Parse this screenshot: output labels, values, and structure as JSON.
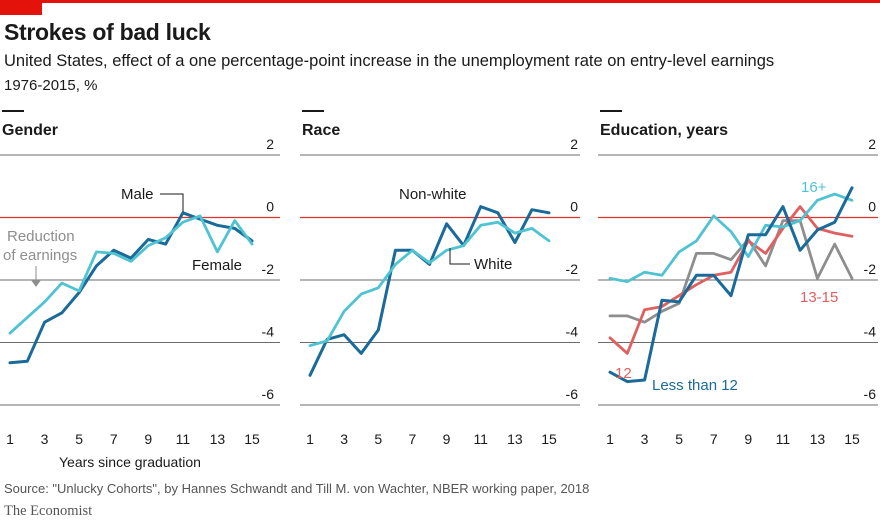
{
  "header": {
    "title": "Strokes of bad luck",
    "subtitle": "United States, effect of a one percentage-point increase in the unemployment rate on entry-level earnings",
    "subtitle2": "1976-2015, %"
  },
  "footer": {
    "source": "Source: \"Unlucky Cohorts\", by Hannes Schwandt and Till M. von Wachter, NBER working paper, 2018",
    "brand": "The Economist"
  },
  "colors": {
    "dark_blue": "#1a6a9a",
    "light_blue": "#4fc3d1",
    "grey": "#8e8e8e",
    "red": "#e06060",
    "zero_line": "#d9342b",
    "grid": "#3a3a3a"
  },
  "chart_data": [
    {
      "type": "line",
      "title": "Gender",
      "xlabel": "Years since graduation",
      "ylabel": "",
      "x": [
        1,
        2,
        3,
        4,
        5,
        6,
        7,
        8,
        9,
        10,
        11,
        12,
        13,
        14,
        15
      ],
      "xticks": [
        "1",
        "3",
        "5",
        "7",
        "9",
        "11",
        "13",
        "15"
      ],
      "yticks": [
        "2",
        "0",
        "-2",
        "-4",
        "-6"
      ],
      "ylim": [
        -6,
        2
      ],
      "series": [
        {
          "name": "Male",
          "color": "#1a6a9a",
          "values": [
            -4.65,
            -4.6,
            -3.35,
            -3.05,
            -2.4,
            -1.55,
            -1.05,
            -1.3,
            -0.7,
            -0.85,
            0.15,
            -0.05,
            -0.25,
            -0.35,
            -0.75
          ]
        },
        {
          "name": "Female",
          "color": "#4fc3d1",
          "values": [
            -3.7,
            -3.2,
            -2.7,
            -2.1,
            -2.35,
            -1.1,
            -1.15,
            -1.4,
            -0.9,
            -0.65,
            -0.15,
            0.05,
            -1.1,
            -0.1,
            -0.85
          ]
        }
      ],
      "annotations": [
        "Reduction of earnings"
      ]
    },
    {
      "type": "line",
      "title": "Race",
      "xlabel": "",
      "ylabel": "",
      "x": [
        1,
        2,
        3,
        4,
        5,
        6,
        7,
        8,
        9,
        10,
        11,
        12,
        13,
        14,
        15
      ],
      "xticks": [
        "1",
        "3",
        "5",
        "7",
        "9",
        "11",
        "13",
        "15"
      ],
      "yticks": [
        "2",
        "0",
        "-2",
        "-4",
        "-6"
      ],
      "ylim": [
        -6,
        2
      ],
      "series": [
        {
          "name": "Non-white",
          "color": "#1a6a9a",
          "values": [
            -5.05,
            -3.9,
            -3.75,
            -4.35,
            -3.6,
            -1.05,
            -1.05,
            -1.5,
            -0.2,
            -0.9,
            0.35,
            0.15,
            -0.8,
            0.25,
            0.15
          ]
        },
        {
          "name": "White",
          "color": "#4fc3d1",
          "values": [
            -4.1,
            -3.95,
            -3.0,
            -2.45,
            -2.25,
            -1.5,
            -1.05,
            -1.45,
            -1.05,
            -0.9,
            -0.25,
            -0.15,
            -0.5,
            -0.35,
            -0.75
          ]
        }
      ]
    },
    {
      "type": "line",
      "title": "Education, years",
      "xlabel": "",
      "ylabel": "",
      "x": [
        1,
        2,
        3,
        4,
        5,
        6,
        7,
        8,
        9,
        10,
        11,
        12,
        13,
        14,
        15
      ],
      "xticks": [
        "1",
        "3",
        "5",
        "7",
        "9",
        "11",
        "13",
        "15"
      ],
      "yticks": [
        "2",
        "0",
        "-2",
        "-4",
        "-6"
      ],
      "ylim": [
        -6,
        2
      ],
      "series": [
        {
          "name": "13-15",
          "color": "#8e8e8e",
          "values": [
            -3.15,
            -3.15,
            -3.35,
            -3.0,
            -2.75,
            -1.15,
            -1.15,
            -1.35,
            -0.7,
            -1.55,
            -0.1,
            -0.1,
            -1.95,
            -0.85,
            -1.95
          ]
        },
        {
          "name": "12",
          "color": "#e06060",
          "values": [
            -3.85,
            -4.35,
            -2.95,
            -2.85,
            -2.5,
            -2.15,
            -1.85,
            -1.75,
            -0.75,
            -1.15,
            -0.35,
            0.35,
            -0.35,
            -0.5,
            -0.6
          ]
        },
        {
          "name": "16+",
          "color": "#4fc3d1",
          "values": [
            -1.95,
            -2.05,
            -1.75,
            -1.85,
            -1.1,
            -0.75,
            0.05,
            -0.45,
            -1.25,
            -0.25,
            -0.3,
            -0.1,
            0.55,
            0.75,
            0.55
          ]
        },
        {
          "name": "Less than 12",
          "color": "#1a6a9a",
          "values": [
            -4.95,
            -5.25,
            -5.2,
            -2.65,
            -2.7,
            -1.85,
            -1.85,
            -2.5,
            -0.55,
            -0.55,
            0.35,
            -1.05,
            -0.4,
            -0.15,
            0.95
          ]
        }
      ]
    }
  ]
}
